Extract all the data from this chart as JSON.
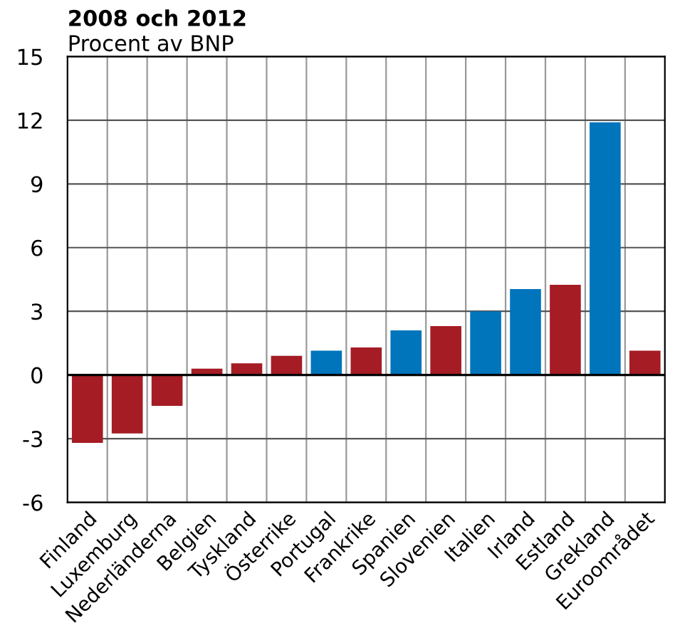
{
  "chart_data": {
    "type": "bar",
    "title": "2008 och 2012",
    "subtitle": "Procent av BNP",
    "categories": [
      "Finland",
      "Luxemburg",
      "Nederländerna",
      "Belgien",
      "Tyskland",
      "Österrike",
      "Portugal",
      "Frankrike",
      "Spanien",
      "Slovenien",
      "Italien",
      "Irland",
      "Estland",
      "Grekland",
      "Euroområdet"
    ],
    "values": [
      -3.2,
      -2.75,
      -1.45,
      0.3,
      0.55,
      0.9,
      1.15,
      1.3,
      2.1,
      2.3,
      3.0,
      4.05,
      4.25,
      11.9,
      1.15
    ],
    "colors": [
      "#a51c24",
      "#a51c24",
      "#a51c24",
      "#a51c24",
      "#a51c24",
      "#a51c24",
      "#0075bc",
      "#a51c24",
      "#0075bc",
      "#a51c24",
      "#0075bc",
      "#0075bc",
      "#a51c24",
      "#0075bc",
      "#a51c24"
    ],
    "ylim": [
      -6,
      15
    ],
    "yticks": [
      -6,
      -3,
      0,
      3,
      6,
      9,
      12,
      15
    ],
    "grid": true
  }
}
